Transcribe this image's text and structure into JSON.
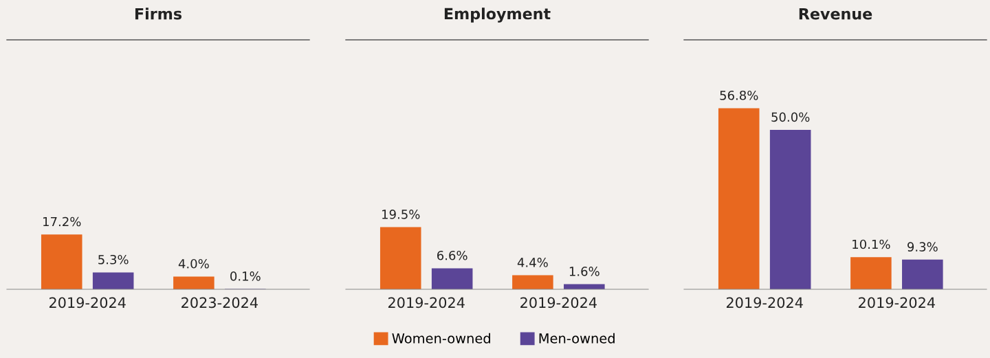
{
  "chart_data": [
    {
      "type": "bar",
      "title": "Firms",
      "categories": [
        "2019-2024",
        "2023-2024"
      ],
      "series": [
        {
          "name": "Women-owned",
          "color": "#e8681f",
          "values": [
            17.2,
            4.0
          ],
          "value_labels": [
            "17.2%",
            "4.0%"
          ]
        },
        {
          "name": "Men-owned",
          "color": "#5b4597",
          "values": [
            5.3,
            0.1
          ],
          "value_labels": [
            "5.3%",
            "0.1%"
          ]
        }
      ],
      "legend": "bottom"
    },
    {
      "type": "bar",
      "title": "Employment",
      "categories": [
        "2019-2024",
        "2019-2024"
      ],
      "series": [
        {
          "color": "#e8681f",
          "values": [
            19.5,
            4.4
          ],
          "value_labels": [
            "19.5%",
            "4.4%"
          ]
        },
        {
          "color": "#5b4597",
          "values": [
            6.6,
            1.6
          ],
          "value_labels": [
            "6.6%",
            "1.6%"
          ]
        }
      ]
    },
    {
      "type": "bar",
      "title": "Revenue",
      "categories": [
        "2019-2024",
        "2019-2024"
      ],
      "series": [
        {
          "color": "#e8681f",
          "values": [
            56.8,
            10.1
          ],
          "value_labels": [
            "56.8%",
            "10.1%"
          ]
        },
        {
          "color": "#5b4597",
          "values": [
            50.0,
            9.3
          ],
          "value_labels": [
            "50.0%",
            "9.3%"
          ]
        }
      ]
    }
  ]
}
